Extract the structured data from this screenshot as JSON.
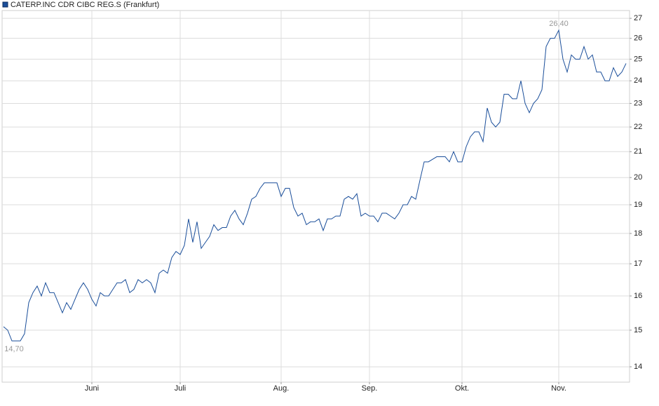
{
  "chart_data": {
    "type": "line",
    "title": "CATERP.INC CDR CIBC REG.S (Frankfurt)",
    "color": "#1a4e9a",
    "log_scale": true,
    "grid": true,
    "categories": [
      null,
      null,
      null,
      null,
      null,
      null,
      null,
      null,
      null,
      null,
      null,
      null,
      null,
      null,
      null,
      null,
      null,
      null,
      null,
      null,
      null,
      "Juni",
      null,
      null,
      null,
      null,
      null,
      null,
      null,
      null,
      null,
      null,
      null,
      null,
      null,
      null,
      null,
      null,
      null,
      null,
      null,
      null,
      "Juli",
      null,
      null,
      null,
      null,
      null,
      null,
      null,
      null,
      null,
      null,
      null,
      null,
      null,
      null,
      null,
      null,
      null,
      null,
      null,
      null,
      null,
      null,
      null,
      "Aug.",
      null,
      null,
      null,
      null,
      null,
      null,
      null,
      null,
      null,
      null,
      null,
      null,
      null,
      null,
      null,
      null,
      null,
      null,
      null,
      null,
      "Sep.",
      null,
      null,
      null,
      null,
      null,
      null,
      null,
      null,
      null,
      null,
      null,
      null,
      null,
      null,
      null,
      null,
      null,
      null,
      null,
      null,
      null,
      "Okt.",
      null,
      null,
      null,
      null,
      null,
      null,
      null,
      null,
      null,
      null,
      null,
      null,
      null,
      null,
      null,
      null,
      null,
      null,
      null,
      null,
      null,
      null,
      "Nov.",
      null,
      null,
      null,
      null,
      null,
      null,
      null,
      null,
      null,
      null,
      null,
      null,
      null,
      null,
      null,
      null
    ],
    "values": [
      15.1,
      15.0,
      14.7,
      14.7,
      14.7,
      14.9,
      15.8,
      16.1,
      16.3,
      16.0,
      16.4,
      16.1,
      16.1,
      15.8,
      15.5,
      15.8,
      15.6,
      15.9,
      16.2,
      16.4,
      16.2,
      15.9,
      15.7,
      16.1,
      16.0,
      16.0,
      16.2,
      16.4,
      16.4,
      16.5,
      16.1,
      16.2,
      16.5,
      16.4,
      16.5,
      16.4,
      16.1,
      16.7,
      16.8,
      16.7,
      17.2,
      17.4,
      17.3,
      17.6,
      18.5,
      17.7,
      18.4,
      17.5,
      17.7,
      17.9,
      18.3,
      18.1,
      18.2,
      18.2,
      18.6,
      18.8,
      18.5,
      18.3,
      18.7,
      19.2,
      19.3,
      19.6,
      19.8,
      19.8,
      19.8,
      19.8,
      19.3,
      19.6,
      19.6,
      18.9,
      18.6,
      18.7,
      18.3,
      18.4,
      18.4,
      18.5,
      18.1,
      18.5,
      18.5,
      18.6,
      18.6,
      19.2,
      19.3,
      19.2,
      19.4,
      18.6,
      18.7,
      18.6,
      18.6,
      18.4,
      18.7,
      18.7,
      18.6,
      18.5,
      18.7,
      19.0,
      19.0,
      19.3,
      19.2,
      19.9,
      20.6,
      20.6,
      20.7,
      20.8,
      20.8,
      20.8,
      20.6,
      21.0,
      20.6,
      20.6,
      21.2,
      21.6,
      21.8,
      21.8,
      21.4,
      22.8,
      22.2,
      22.0,
      22.2,
      23.4,
      23.4,
      23.2,
      23.2,
      24.0,
      23.0,
      22.6,
      23.0,
      23.2,
      23.6,
      25.6,
      26.0,
      26.0,
      26.4,
      25.0,
      24.4,
      25.2,
      25.0,
      25.0,
      25.6,
      25.0,
      25.2,
      24.4,
      24.4,
      24.0,
      24.0,
      24.6,
      24.2,
      24.4,
      24.8
    ],
    "value_labels": [
      null,
      null,
      "14,70",
      null,
      null,
      null,
      null,
      null,
      null,
      null,
      null,
      null,
      null,
      null,
      null,
      null,
      null,
      null,
      null,
      null,
      null,
      null,
      null,
      null,
      null,
      null,
      null,
      null,
      null,
      null,
      null,
      null,
      null,
      null,
      null,
      null,
      null,
      null,
      null,
      null,
      null,
      null,
      null,
      null,
      null,
      null,
      null,
      null,
      null,
      null,
      null,
      null,
      null,
      null,
      null,
      null,
      null,
      null,
      null,
      null,
      null,
      null,
      null,
      null,
      null,
      null,
      null,
      null,
      null,
      null,
      null,
      null,
      null,
      null,
      null,
      null,
      null,
      null,
      null,
      null,
      null,
      null,
      null,
      null,
      null,
      null,
      null,
      null,
      null,
      null,
      null,
      null,
      null,
      null,
      null,
      null,
      null,
      null,
      null,
      null,
      null,
      null,
      null,
      null,
      null,
      null,
      null,
      null,
      null,
      null,
      null,
      null,
      null,
      null,
      null,
      null,
      null,
      null,
      null,
      null,
      null,
      null,
      null,
      null,
      null,
      null,
      null,
      null,
      null,
      null,
      null,
      null,
      "26,40",
      null,
      null,
      null,
      null,
      null,
      null,
      null,
      null,
      null,
      null,
      null,
      null,
      null,
      null,
      null,
      null
    ],
    "ylim": [
      13.6,
      27.4
    ],
    "yticks": [
      14,
      15,
      16,
      17,
      18,
      19,
      20,
      21,
      22,
      23,
      24,
      25,
      26,
      27
    ]
  }
}
